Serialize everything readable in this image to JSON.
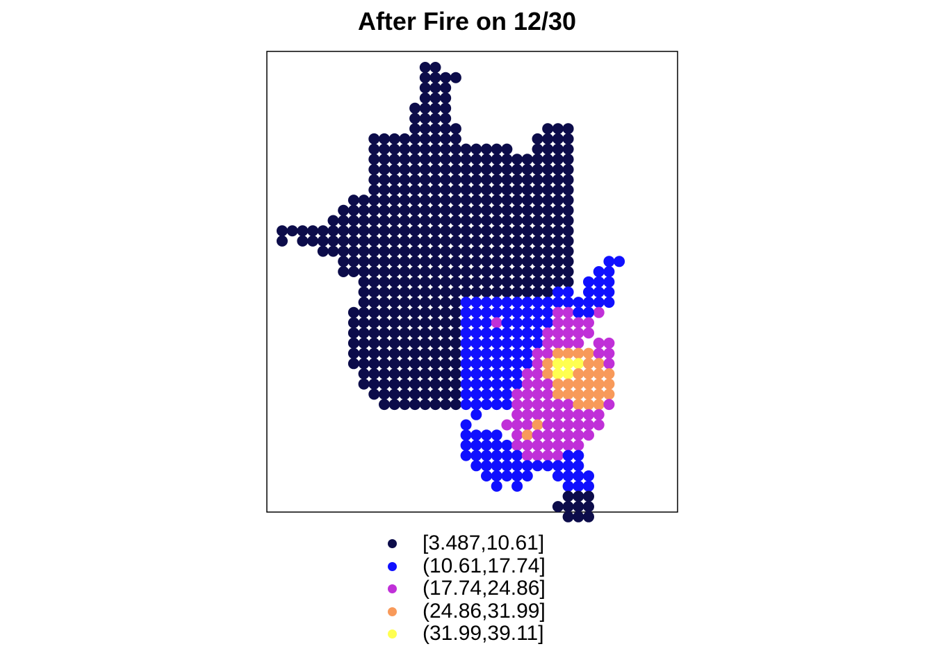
{
  "chart_data": {
    "type": "scatter",
    "title": "After Fire on 12/30",
    "xlabel": "",
    "ylabel": "",
    "grid": false,
    "legend_position": "bottom",
    "legend": [
      {
        "label": "[3.487,10.61]",
        "color": "#0c0c4a"
      },
      {
        "label": "(10.61,17.74]",
        "color": "#1010ff"
      },
      {
        "label": "(17.74,24.86]",
        "color": "#c030d8"
      },
      {
        "label": "(24.86,31.99]",
        "color": "#f89a5a"
      },
      {
        "label": "(31.99,39.11]",
        "color": "#ffff50"
      }
    ],
    "grid_cells": {
      "note": "regular grid of cells; row index increases downward, column index increases rightward; each entry is a contiguous run with class index",
      "rows": [
        {
          "row": 0,
          "runs": [
            [
              12,
              13,
              0
            ]
          ]
        },
        {
          "row": 1,
          "runs": [
            [
              12,
              15,
              0
            ]
          ]
        },
        {
          "row": 2,
          "runs": [
            [
              12,
              14,
              0
            ]
          ]
        },
        {
          "row": 3,
          "runs": [
            [
              12,
              14,
              0
            ]
          ]
        },
        {
          "row": 4,
          "runs": [
            [
              11,
              14,
              0
            ]
          ]
        },
        {
          "row": 5,
          "runs": [
            [
              11,
              14,
              0
            ]
          ]
        },
        {
          "row": 6,
          "runs": [
            [
              11,
              15,
              0
            ],
            [
              24,
              26,
              0
            ]
          ]
        },
        {
          "row": 7,
          "runs": [
            [
              7,
              15,
              0
            ],
            [
              23,
              26,
              0
            ]
          ]
        },
        {
          "row": 8,
          "runs": [
            [
              7,
              20,
              0
            ],
            [
              23,
              26,
              0
            ]
          ]
        },
        {
          "row": 9,
          "runs": [
            [
              7,
              26,
              0
            ]
          ]
        },
        {
          "row": 10,
          "runs": [
            [
              7,
              26,
              0
            ]
          ]
        },
        {
          "row": 11,
          "runs": [
            [
              7,
              26,
              0
            ]
          ]
        },
        {
          "row": 12,
          "runs": [
            [
              7,
              26,
              0
            ]
          ]
        },
        {
          "row": 13,
          "runs": [
            [
              5,
              26,
              0
            ]
          ]
        },
        {
          "row": 14,
          "runs": [
            [
              4,
              26,
              0
            ]
          ]
        },
        {
          "row": 15,
          "runs": [
            [
              3,
              26,
              0
            ]
          ]
        },
        {
          "row": 16,
          "runs": [
            [
              -2,
              26,
              0
            ]
          ]
        },
        {
          "row": 17,
          "runs": [
            [
              -2,
              -2,
              0
            ],
            [
              0,
              26,
              0
            ]
          ]
        },
        {
          "row": 18,
          "runs": [
            [
              2,
              26,
              0
            ]
          ]
        },
        {
          "row": 19,
          "runs": [
            [
              4,
              26,
              0
            ],
            [
              30,
              31,
              1
            ]
          ]
        },
        {
          "row": 20,
          "runs": [
            [
              4,
              26,
              0
            ],
            [
              29,
              30,
              1
            ]
          ]
        },
        {
          "row": 21,
          "runs": [
            [
              6,
              26,
              0
            ],
            [
              28,
              30,
              1
            ]
          ]
        },
        {
          "row": 22,
          "runs": [
            [
              6,
              19,
              0
            ],
            [
              20,
              24,
              0
            ],
            [
              25,
              26,
              1
            ],
            [
              28,
              30,
              1
            ]
          ]
        },
        {
          "row": 23,
          "runs": [
            [
              6,
              15,
              0
            ],
            [
              16,
              26,
              1
            ],
            [
              27,
              30,
              1
            ]
          ]
        },
        {
          "row": 24,
          "runs": [
            [
              5,
              15,
              0
            ],
            [
              16,
              24,
              1
            ],
            [
              25,
              29,
              2
            ],
            [
              27,
              28,
              1
            ]
          ]
        },
        {
          "row": 25,
          "runs": [
            [
              5,
              15,
              0
            ],
            [
              16,
              18,
              1
            ],
            [
              19,
              19,
              2
            ],
            [
              20,
              24,
              1
            ],
            [
              25,
              28,
              2
            ]
          ]
        },
        {
          "row": 26,
          "runs": [
            [
              5,
              15,
              0
            ],
            [
              16,
              23,
              1
            ],
            [
              24,
              28,
              2
            ]
          ]
        },
        {
          "row": 27,
          "runs": [
            [
              5,
              15,
              0
            ],
            [
              16,
              23,
              1
            ],
            [
              24,
              27,
              2
            ],
            [
              29,
              30,
              2
            ]
          ]
        },
        {
          "row": 28,
          "runs": [
            [
              5,
              15,
              0
            ],
            [
              16,
              22,
              1
            ],
            [
              23,
              24,
              2
            ],
            [
              25,
              28,
              3
            ],
            [
              29,
              30,
              2
            ]
          ]
        },
        {
          "row": 29,
          "runs": [
            [
              5,
              15,
              0
            ],
            [
              16,
              22,
              1
            ],
            [
              23,
              23,
              2
            ],
            [
              24,
              24,
              3
            ],
            [
              25,
              27,
              4
            ],
            [
              28,
              29,
              3
            ],
            [
              30,
              30,
              2
            ]
          ]
        },
        {
          "row": 30,
          "runs": [
            [
              6,
              15,
              0
            ],
            [
              16,
              21,
              1
            ],
            [
              22,
              23,
              2
            ],
            [
              24,
              24,
              3
            ],
            [
              25,
              26,
              4
            ],
            [
              27,
              30,
              3
            ]
          ]
        },
        {
          "row": 31,
          "runs": [
            [
              6,
              15,
              0
            ],
            [
              16,
              21,
              1
            ],
            [
              22,
              24,
              2
            ],
            [
              25,
              30,
              3
            ]
          ]
        },
        {
          "row": 32,
          "runs": [
            [
              7,
              15,
              0
            ],
            [
              16,
              20,
              1
            ],
            [
              21,
              24,
              2
            ],
            [
              25,
              30,
              3
            ]
          ]
        },
        {
          "row": 33,
          "runs": [
            [
              8,
              15,
              0
            ],
            [
              16,
              20,
              1
            ],
            [
              21,
              26,
              2
            ],
            [
              27,
              29,
              3
            ],
            [
              30,
              30,
              2
            ]
          ]
        },
        {
          "row": 34,
          "runs": [
            [
              17,
              17,
              1
            ],
            [
              21,
              29,
              2
            ]
          ]
        },
        {
          "row": 35,
          "runs": [
            [
              16,
              16,
              1
            ],
            [
              20,
              20,
              2
            ],
            [
              21,
              22,
              2
            ],
            [
              23,
              23,
              3
            ],
            [
              24,
              29,
              2
            ]
          ]
        },
        {
          "row": 36,
          "runs": [
            [
              16,
              19,
              1
            ],
            [
              21,
              22,
              2
            ],
            [
              22,
              22,
              3
            ],
            [
              23,
              28,
              2
            ]
          ]
        },
        {
          "row": 37,
          "runs": [
            [
              16,
              21,
              1
            ],
            [
              21,
              26,
              2
            ],
            [
              26,
              27,
              2
            ]
          ]
        },
        {
          "row": 38,
          "runs": [
            [
              16,
              21,
              1
            ],
            [
              22,
              26,
              2
            ],
            [
              26,
              27,
              1
            ]
          ]
        },
        {
          "row": 39,
          "runs": [
            [
              17,
              23,
              1
            ],
            [
              24,
              27,
              1
            ]
          ]
        },
        {
          "row": 40,
          "runs": [
            [
              18,
              21,
              1
            ],
            [
              22,
              22,
              1
            ],
            [
              25,
              28,
              1
            ]
          ]
        },
        {
          "row": 41,
          "runs": [
            [
              19,
              19,
              1
            ],
            [
              21,
              21,
              1
            ],
            [
              26,
              27,
              1
            ],
            [
              28,
              28,
              1
            ]
          ]
        },
        {
          "row": 42,
          "runs": [
            [
              26,
              28,
              0
            ]
          ]
        },
        {
          "row": 43,
          "runs": [
            [
              25,
              28,
              0
            ]
          ]
        },
        {
          "row": 44,
          "runs": [
            [
              26,
              28,
              0
            ]
          ]
        }
      ]
    }
  }
}
